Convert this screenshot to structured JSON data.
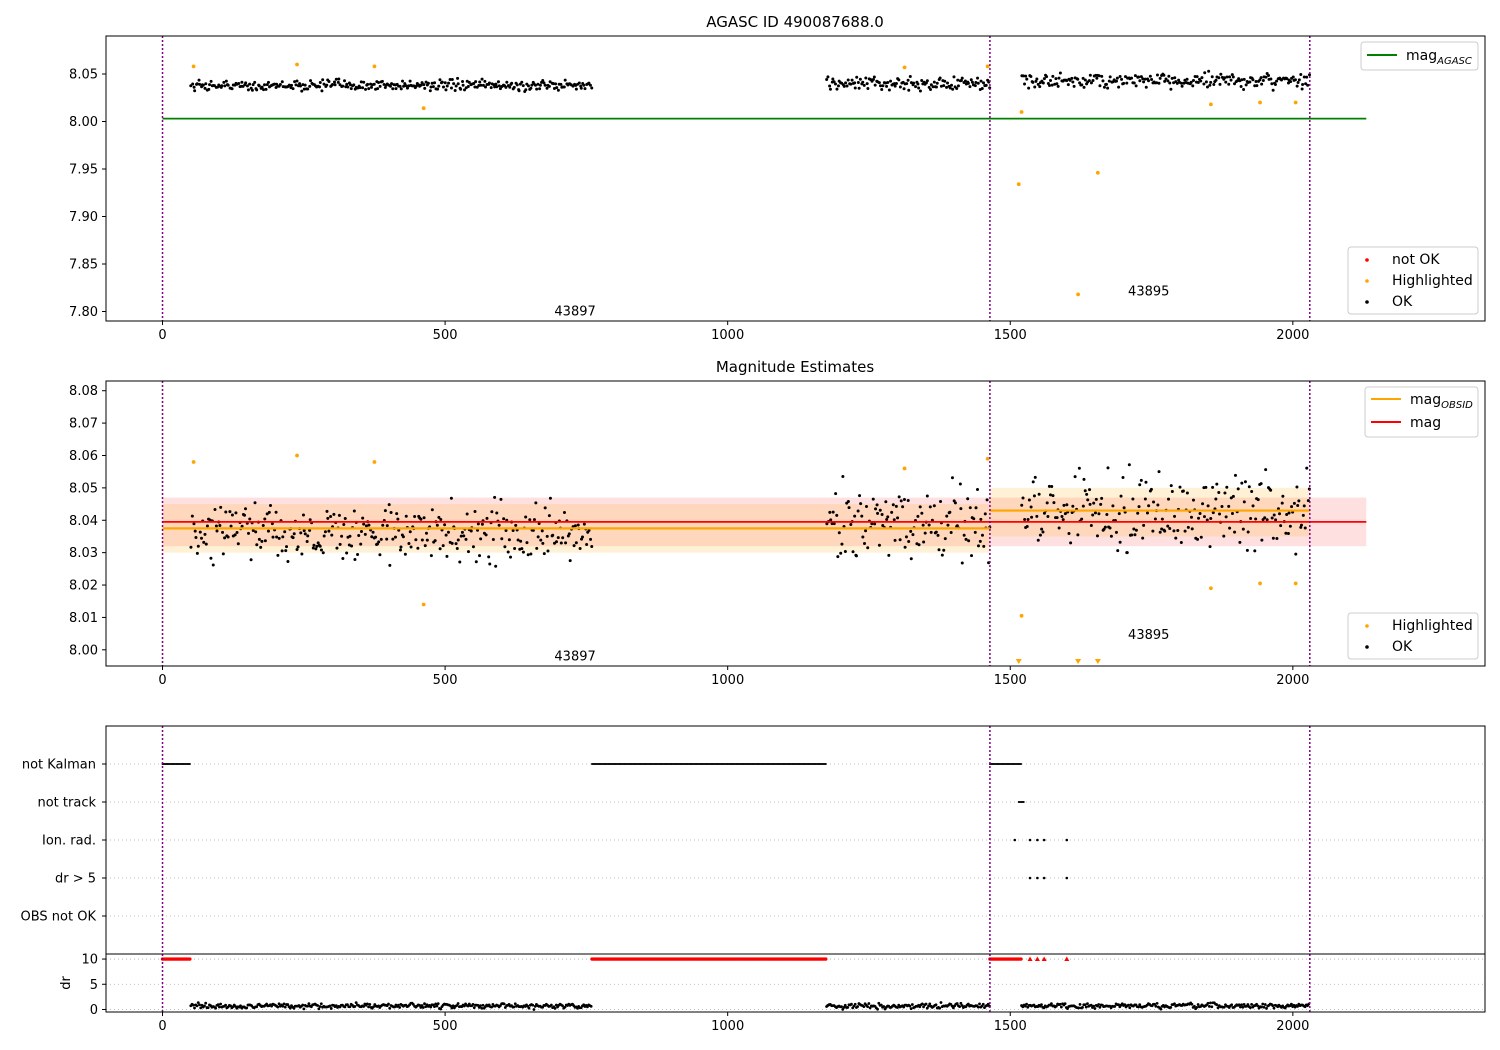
{
  "chart_data": [
    {
      "type": "scatter",
      "title": "AGASC ID 490087688.0",
      "xlim": [
        -100,
        2340
      ],
      "ylim": [
        7.79,
        8.09
      ],
      "xticks": [
        0,
        500,
        1000,
        1500,
        2000
      ],
      "yticks": [
        7.8,
        7.85,
        7.9,
        7.95,
        8.0,
        8.05
      ],
      "vlines": [
        0,
        1464,
        2030
      ],
      "reference_line": {
        "name": "mag",
        "sub": "AGASC",
        "y": 8.003,
        "x": [
          0,
          2130
        ],
        "color": "#008000"
      },
      "segment_labels": [
        {
          "text": "43897",
          "x": 730,
          "y": 7.8
        },
        {
          "text": "43895",
          "x": 1745,
          "y": 7.821
        }
      ],
      "ok_segments": [
        {
          "x0": 50,
          "x1": 760,
          "base": 8.038,
          "spread": 0.005
        },
        {
          "x0": 1175,
          "x1": 1464,
          "base": 8.04,
          "spread": 0.006
        },
        {
          "x0": 1520,
          "x1": 2030,
          "base": 8.043,
          "spread": 0.007
        }
      ],
      "highlighted": [
        [
          55,
          8.058
        ],
        [
          238,
          8.06
        ],
        [
          375,
          8.058
        ],
        [
          462,
          8.014
        ],
        [
          1313,
          8.057
        ],
        [
          1460,
          8.058
        ],
        [
          1520,
          8.01
        ],
        [
          1515,
          7.934
        ],
        [
          1655,
          7.946
        ],
        [
          1620,
          7.818
        ],
        [
          1855,
          8.018
        ],
        [
          1942,
          8.02
        ],
        [
          2005,
          8.02
        ]
      ],
      "legend": [
        {
          "label": "not OK",
          "color": "#ff0000"
        },
        {
          "label": "Highlighted",
          "color": "#ffa500"
        },
        {
          "label": "OK",
          "color": "#000000"
        }
      ]
    },
    {
      "type": "scatter",
      "title": "Magnitude Estimates",
      "xlim": [
        -100,
        2340
      ],
      "ylim": [
        7.995,
        8.083
      ],
      "xticks": [
        0,
        500,
        1000,
        1500,
        2000
      ],
      "yticks": [
        8.0,
        8.01,
        8.02,
        8.03,
        8.04,
        8.05,
        8.06,
        8.07,
        8.08
      ],
      "vlines": [
        0,
        1464,
        2030
      ],
      "mag_line": {
        "name": "mag",
        "y": 8.0395,
        "band": [
          8.032,
          8.047
        ],
        "x": [
          0,
          2130
        ],
        "color": "#ff0000"
      },
      "obsid_lines": [
        {
          "x": [
            0,
            1464
          ],
          "y": 8.0375,
          "band": [
            8.03,
            8.045
          ]
        },
        {
          "x": [
            1464,
            2030
          ],
          "y": 8.043,
          "band": [
            8.035,
            8.05
          ]
        }
      ],
      "obsid_name": "mag",
      "obsid_sub": "OBSID",
      "segment_labels": [
        {
          "text": "43897",
          "x": 730,
          "y": 7.998
        },
        {
          "text": "43895",
          "x": 1745,
          "y": 8.0045
        }
      ],
      "ok_segments": [
        {
          "x0": 50,
          "x1": 760,
          "base": 8.036,
          "spread": 0.008
        },
        {
          "x0": 1175,
          "x1": 1464,
          "base": 8.039,
          "spread": 0.01
        },
        {
          "x0": 1520,
          "x1": 2030,
          "base": 8.043,
          "spread": 0.011
        }
      ],
      "highlighted": [
        [
          55,
          8.058
        ],
        [
          238,
          8.06
        ],
        [
          375,
          8.058
        ],
        [
          462,
          8.014
        ],
        [
          1313,
          8.056
        ],
        [
          1460,
          8.059
        ],
        [
          1520,
          8.0105
        ],
        [
          1855,
          8.019
        ],
        [
          1942,
          8.0205
        ],
        [
          2005,
          8.0205
        ]
      ],
      "offscale_markers": [
        1515,
        1620,
        1655
      ],
      "legend": [
        {
          "label": "Highlighted",
          "color": "#ffa500"
        },
        {
          "label": "OK",
          "color": "#000000"
        }
      ]
    },
    {
      "type": "scatter",
      "title": "",
      "xlim": [
        -100,
        2340
      ],
      "categories": [
        "not Kalman",
        "not track",
        "Ion. rad.",
        "dr > 5",
        "OBS not OK"
      ],
      "vlines": [
        0,
        1464,
        2030
      ],
      "flag_ranges": [
        {
          "category": "not Kalman",
          "ranges": [
            [
              0,
              50
            ],
            [
              760,
              1175
            ],
            [
              1464,
              1520
            ]
          ]
        },
        {
          "category": "not track",
          "ranges": [
            [
              1515,
              1525
            ]
          ]
        }
      ],
      "flag_points": [
        {
          "category": "Ion. rad.",
          "x": [
            1508,
            1535,
            1548,
            1560,
            1600
          ]
        },
        {
          "category": "dr > 5",
          "x": [
            1535,
            1548,
            1560,
            1600
          ]
        }
      ]
    },
    {
      "type": "scatter",
      "title": "",
      "ylabel": "dr",
      "xlim": [
        -100,
        2340
      ],
      "ylim": [
        -0.5,
        11
      ],
      "xticks": [
        0,
        500,
        1000,
        1500,
        2000
      ],
      "yticks": [
        0,
        5,
        10
      ],
      "vlines": [
        0,
        1464,
        2030
      ],
      "clipped_ranges": [
        [
          0,
          50
        ],
        [
          760,
          1175
        ],
        [
          1464,
          1520
        ]
      ],
      "clipped_points": [
        1535,
        1548,
        1560,
        1600
      ],
      "ok_segments": [
        {
          "x0": 50,
          "x1": 760,
          "base": 0.7,
          "spread": 0.5
        },
        {
          "x0": 1175,
          "x1": 1464,
          "base": 0.7,
          "spread": 0.5
        },
        {
          "x0": 1520,
          "x1": 2030,
          "base": 0.7,
          "spread": 0.5
        }
      ]
    }
  ]
}
